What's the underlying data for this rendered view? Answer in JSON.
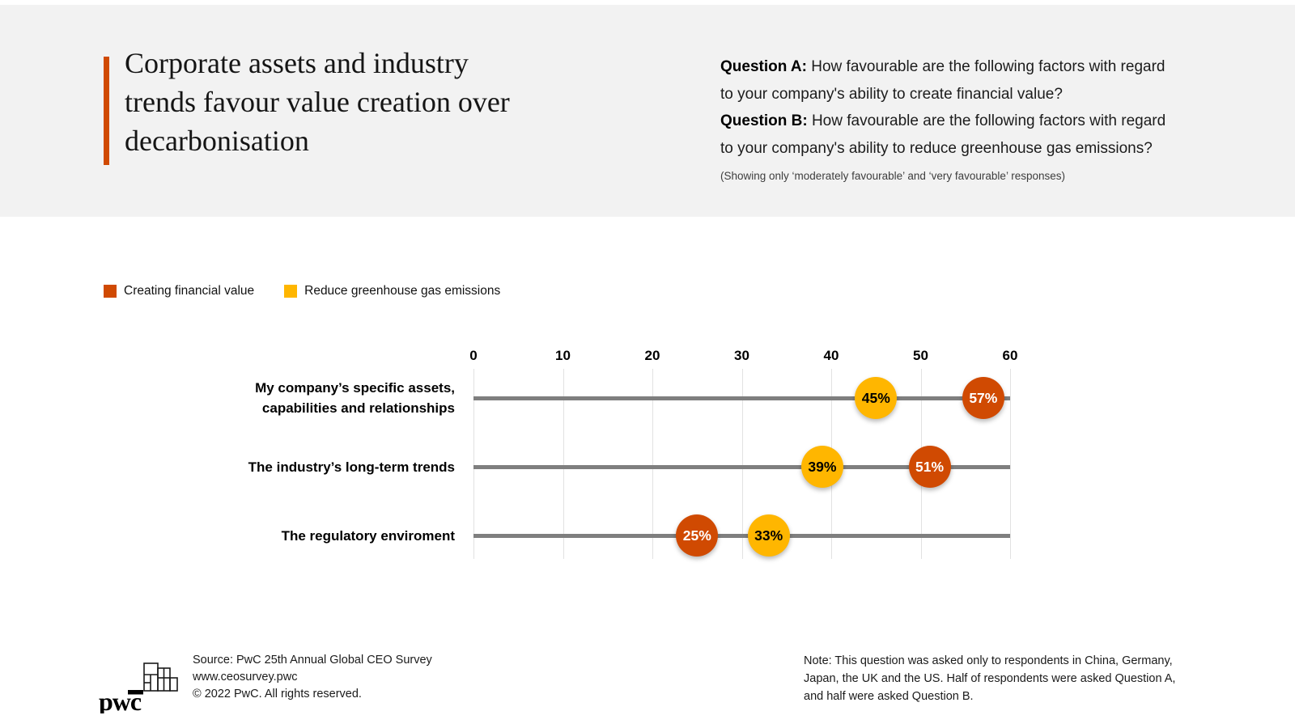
{
  "header": {
    "title": "Corporate assets and industry\ntrends favour value creation over\ndecarbonisation",
    "question_a": {
      "label": "Question A:",
      "text": "How favourable are the following factors with regard\nto your company's ability to create financial value?"
    },
    "question_b": {
      "label": "Question B:",
      "text": "How favourable are the following factors with regard\nto your company's ability to reduce greenhouse gas emissions?"
    },
    "subnote": "(Showing only ‘moderately favourable’ and ‘very favourable’ responses)"
  },
  "legend": {
    "items": [
      {
        "label": "Creating financial value",
        "color": "#d04a02"
      },
      {
        "label": "Reduce greenhouse gas emissions",
        "color": "#ffb600"
      }
    ]
  },
  "chart_data": {
    "type": "scatter",
    "variant": "horizontal-dot-plot",
    "categories": [
      "My company’s specific assets,\ncapabilities and relationships",
      "The industry’s long-term trends",
      "The regulatory enviroment"
    ],
    "series": [
      {
        "name": "Creating financial value",
        "color": "#d04a02",
        "label_color": "#ffffff",
        "values": [
          57,
          51,
          25
        ]
      },
      {
        "name": "Reduce greenhouse gas emissions",
        "color": "#ffb600",
        "label_color": "#000000",
        "values": [
          45,
          39,
          33
        ]
      }
    ],
    "value_suffix": "%",
    "xlim": [
      0,
      60
    ],
    "ticks": [
      0,
      10,
      20,
      30,
      40,
      50,
      60
    ],
    "grid": true,
    "legend_position": "top-left"
  },
  "footer": {
    "logo_text": "pwc",
    "source": "Source: PwC 25th Annual Global CEO Survey\nwww.ceosurvey.pwc\n© 2022 PwC. All rights reserved.",
    "note": "Note: This question was asked only to respondents in China, Germany,\nJapan, the UK and the US. Half of respondents were asked Question A,\nand half were asked Question B."
  },
  "colors": {
    "accent_orange": "#d04a02",
    "gold": "#ffb600",
    "header_bg": "#f2f2f2",
    "row_line": "#7f7f7f",
    "gridline": "#e2e2e2"
  }
}
